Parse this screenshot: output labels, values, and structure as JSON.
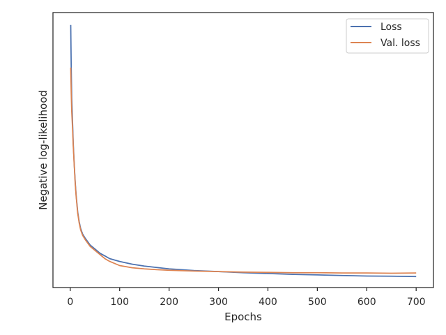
{
  "chart_data": {
    "type": "line",
    "title": "",
    "xlabel": "Epochs",
    "ylabel": "Negative log-likelihood",
    "xlim": [
      -35,
      735
    ],
    "ylim": [
      0,
      100
    ],
    "x_ticks": [
      0,
      100,
      200,
      300,
      400,
      500,
      600,
      700
    ],
    "y_ticks_shown": false,
    "grid": false,
    "legend": "top-right",
    "series": [
      {
        "name": "Loss",
        "color": "#4c72b0",
        "x": [
          1,
          2,
          3,
          4,
          5,
          6,
          8,
          10,
          12,
          15,
          18,
          21,
          25,
          30,
          40,
          50,
          60,
          70,
          80,
          100,
          125,
          150,
          175,
          200,
          250,
          300,
          350,
          400,
          450,
          500,
          550,
          600,
          650,
          700
        ],
        "y": [
          95.5,
          80,
          69,
          63,
          58,
          52.5,
          45,
          38.5,
          33.5,
          27.5,
          24,
          21.5,
          19.5,
          18,
          15.5,
          14,
          12.5,
          11.5,
          10.5,
          9.5,
          8.5,
          7.8,
          7.3,
          6.8,
          6.2,
          5.8,
          5.4,
          5.1,
          4.8,
          4.6,
          4.4,
          4.2,
          4.1,
          4.0
        ]
      },
      {
        "name": "Val. loss",
        "color": "#dd8452",
        "x": [
          1,
          2,
          3,
          4,
          5,
          6,
          8,
          10,
          12,
          15,
          18,
          21,
          25,
          30,
          40,
          50,
          60,
          70,
          80,
          100,
          125,
          150,
          175,
          200,
          250,
          300,
          350,
          400,
          450,
          500,
          550,
          600,
          650,
          700
        ],
        "y": [
          80,
          71,
          64,
          60,
          56,
          51.5,
          44.5,
          38,
          33,
          27,
          23.5,
          21,
          19,
          17.5,
          15,
          13.5,
          12,
          10.5,
          9.5,
          8,
          7.2,
          6.8,
          6.5,
          6.3,
          6.0,
          5.8,
          5.6,
          5.5,
          5.4,
          5.4,
          5.3,
          5.3,
          5.2,
          5.3
        ]
      }
    ]
  }
}
